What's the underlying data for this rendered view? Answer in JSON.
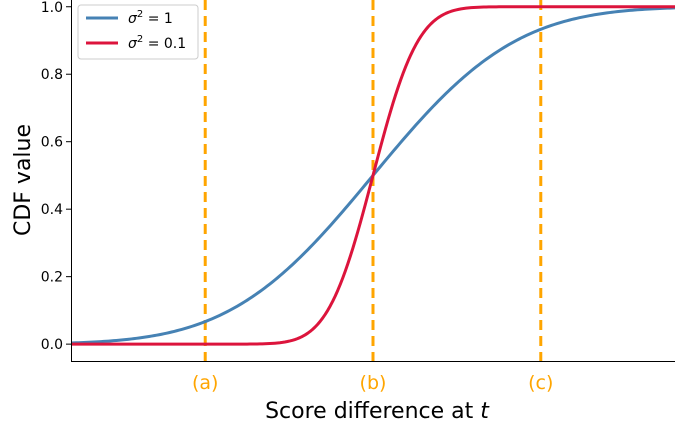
{
  "chart_data": {
    "type": "line",
    "title": "",
    "xlabel": "Score difference at",
    "xlabel_var": "t",
    "ylabel": "CDF value",
    "xlim": [
      -2.7,
      2.7
    ],
    "ylim": [
      -0.05,
      1.02
    ],
    "yticks": [
      0.0,
      0.2,
      0.4,
      0.6,
      0.8,
      1.0
    ],
    "ytick_labels": [
      "0.0",
      "0.2",
      "0.4",
      "0.6",
      "0.8",
      "1.0"
    ],
    "grid": false,
    "legend_position": "top-left",
    "series": [
      {
        "name": "σ² = 1",
        "name_base": "σ",
        "name_sup": "2",
        "name_rest": " = 1",
        "color": "#4682b4",
        "sigma": 1.0,
        "x": [
          -2.7,
          -2.4,
          -2.1,
          -1.8,
          -1.5,
          -1.2,
          -0.9,
          -0.6,
          -0.3,
          0.0,
          0.3,
          0.6,
          0.9,
          1.2,
          1.5,
          1.8,
          2.1,
          2.4,
          2.7
        ],
        "y": [
          0.003,
          0.008,
          0.018,
          0.036,
          0.067,
          0.115,
          0.184,
          0.274,
          0.382,
          0.5,
          0.618,
          0.726,
          0.816,
          0.885,
          0.933,
          0.964,
          0.982,
          0.992,
          0.997
        ]
      },
      {
        "name": "σ² = 0.1",
        "name_base": "σ",
        "name_sup": "2",
        "name_rest": " = 0.1",
        "color": "#dc143c",
        "sigma": 0.316,
        "x": [
          -2.7,
          -1.5,
          -1.2,
          -1.0,
          -0.8,
          -0.6,
          -0.4,
          -0.2,
          0.0,
          0.2,
          0.4,
          0.6,
          0.8,
          1.0,
          1.2,
          1.5,
          2.7
        ],
        "y": [
          0.0,
          0.0,
          0.0,
          0.001,
          0.006,
          0.029,
          0.103,
          0.264,
          0.5,
          0.736,
          0.897,
          0.971,
          0.994,
          0.999,
          1.0,
          1.0,
          1.0
        ]
      }
    ],
    "markers": [
      {
        "x": -1.5,
        "label": "(a)",
        "color": "#ffa500"
      },
      {
        "x": 0.0,
        "label": "(b)",
        "color": "#ffa500"
      },
      {
        "x": 1.5,
        "label": "(c)",
        "color": "#ffa500"
      }
    ]
  }
}
